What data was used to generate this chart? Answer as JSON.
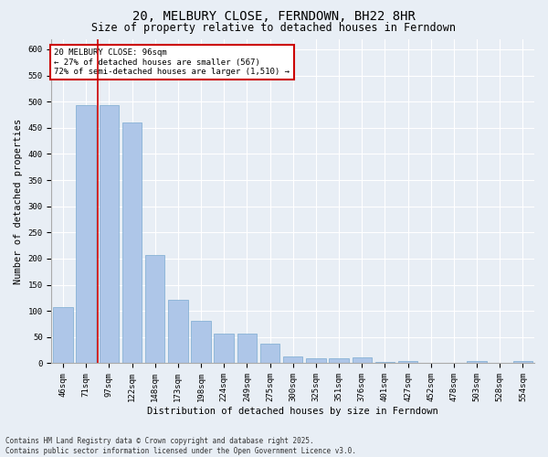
{
  "title": "20, MELBURY CLOSE, FERNDOWN, BH22 8HR",
  "subtitle": "Size of property relative to detached houses in Ferndown",
  "xlabel": "Distribution of detached houses by size in Ferndown",
  "ylabel": "Number of detached properties",
  "categories": [
    "46sqm",
    "71sqm",
    "97sqm",
    "122sqm",
    "148sqm",
    "173sqm",
    "198sqm",
    "224sqm",
    "249sqm",
    "275sqm",
    "300sqm",
    "325sqm",
    "351sqm",
    "376sqm",
    "401sqm",
    "427sqm",
    "452sqm",
    "478sqm",
    "503sqm",
    "528sqm",
    "554sqm"
  ],
  "values": [
    107,
    493,
    493,
    460,
    207,
    122,
    82,
    57,
    57,
    38,
    13,
    10,
    10,
    11,
    3,
    5,
    0,
    0,
    5,
    0,
    5
  ],
  "bar_color": "#aec6e8",
  "bar_edge_color": "#7aaBd0",
  "bg_color": "#e8eef5",
  "grid_color": "#ffffff",
  "vline_color": "#cc0000",
  "annotation_text": "20 MELBURY CLOSE: 96sqm\n← 27% of detached houses are smaller (567)\n72% of semi-detached houses are larger (1,510) →",
  "annotation_box_color": "#cc0000",
  "annotation_fill": "#ffffff",
  "footer": "Contains HM Land Registry data © Crown copyright and database right 2025.\nContains public sector information licensed under the Open Government Licence v3.0.",
  "ylim": [
    0,
    620
  ],
  "yticks": [
    0,
    50,
    100,
    150,
    200,
    250,
    300,
    350,
    400,
    450,
    500,
    550,
    600
  ],
  "title_fontsize": 10,
  "subtitle_fontsize": 8.5,
  "label_fontsize": 7.5,
  "tick_fontsize": 6.5,
  "footer_fontsize": 5.5,
  "annot_fontsize": 6.5
}
